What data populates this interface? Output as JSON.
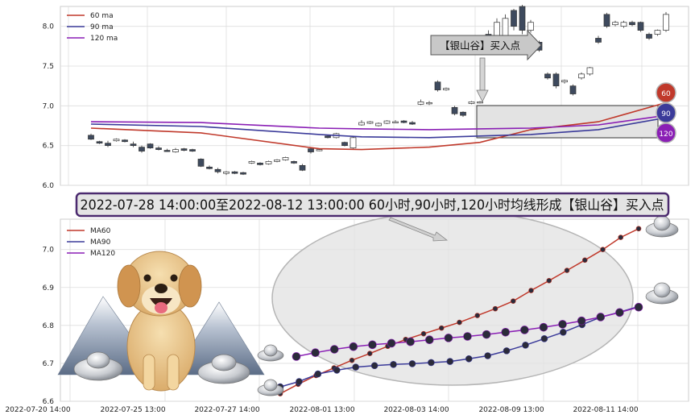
{
  "chart_data": [
    {
      "type": "candlestick",
      "ylim": [
        6.0,
        8.25
      ],
      "yticks": [
        "6.0",
        "6.5",
        "7.0",
        "7.5",
        "8.0"
      ],
      "legend": [
        "60 ma",
        "90 ma",
        "120 ma"
      ],
      "legend_placement": "top-left",
      "grid": true,
      "colors": {
        "ma60": "#c0392b",
        "ma90": "#3b3b9a",
        "ma120": "#8a1fb5",
        "bear": "#3e4a5e",
        "bull": "#ffffff"
      },
      "candles": [
        [
          6.63,
          6.58,
          6.65,
          6.57
        ],
        [
          6.55,
          6.53,
          6.56,
          6.52
        ],
        [
          6.53,
          6.5,
          6.56,
          6.48
        ],
        [
          6.56,
          6.58,
          6.59,
          6.55
        ],
        [
          6.57,
          6.55,
          6.58,
          6.54
        ],
        [
          6.52,
          6.5,
          6.55,
          6.48
        ],
        [
          6.48,
          6.43,
          6.5,
          6.41
        ],
        [
          6.52,
          6.47,
          6.53,
          6.46
        ],
        [
          6.47,
          6.45,
          6.49,
          6.44
        ],
        [
          6.44,
          6.43,
          6.46,
          6.42
        ],
        [
          6.42,
          6.45,
          6.47,
          6.41
        ],
        [
          6.46,
          6.44,
          6.47,
          6.43
        ],
        [
          6.45,
          6.43,
          6.46,
          6.42
        ],
        [
          6.33,
          6.24,
          6.34,
          6.23
        ],
        [
          6.23,
          6.21,
          6.25,
          6.2
        ],
        [
          6.2,
          6.17,
          6.22,
          6.15
        ],
        [
          6.15,
          6.17,
          6.18,
          6.13
        ],
        [
          6.17,
          6.15,
          6.18,
          6.14
        ],
        [
          6.16,
          6.14,
          6.17,
          6.13
        ],
        [
          6.28,
          6.3,
          6.31,
          6.27
        ],
        [
          6.28,
          6.26,
          6.29,
          6.25
        ],
        [
          6.27,
          6.3,
          6.31,
          6.26
        ],
        [
          6.3,
          6.32,
          6.33,
          6.29
        ],
        [
          6.32,
          6.35,
          6.36,
          6.31
        ],
        [
          6.3,
          6.28,
          6.31,
          6.27
        ],
        [
          6.25,
          6.19,
          6.27,
          6.18
        ],
        [
          6.46,
          6.42,
          6.48,
          6.4
        ],
        [
          6.44,
          6.45,
          6.46,
          6.43
        ],
        [
          6.62,
          6.6,
          6.63,
          6.59
        ],
        [
          6.6,
          6.65,
          6.66,
          6.59
        ],
        [
          6.54,
          6.5,
          6.55,
          6.49
        ],
        [
          6.47,
          6.6,
          6.62,
          6.46
        ],
        [
          6.76,
          6.79,
          6.82,
          6.75
        ],
        [
          6.78,
          6.8,
          6.81,
          6.77
        ],
        [
          6.75,
          6.78,
          6.79,
          6.74
        ],
        [
          6.78,
          6.81,
          6.82,
          6.77
        ],
        [
          6.79,
          6.8,
          6.82,
          6.78
        ],
        [
          6.81,
          6.79,
          6.82,
          6.78
        ],
        [
          6.79,
          6.77,
          6.81,
          6.76
        ],
        [
          7.02,
          7.05,
          7.08,
          7.01
        ],
        [
          7.03,
          7.04,
          7.06,
          7.01
        ],
        [
          7.3,
          7.2,
          7.32,
          7.18
        ],
        [
          7.2,
          7.22,
          7.23,
          7.19
        ],
        [
          6.98,
          6.9,
          7.0,
          6.88
        ],
        [
          6.92,
          6.88,
          6.93,
          6.86
        ],
        [
          7.03,
          7.05,
          7.06,
          7.02
        ],
        [
          7.04,
          7.05,
          7.06,
          7.03
        ],
        [
          7.9,
          7.7,
          7.95,
          7.68
        ],
        [
          7.85,
          8.05,
          8.1,
          7.83
        ],
        [
          7.82,
          8.1,
          8.15,
          7.8
        ],
        [
          8.2,
          8.0,
          8.22,
          7.95
        ],
        [
          8.25,
          7.95,
          8.27,
          7.9
        ],
        [
          7.95,
          8.05,
          8.08,
          7.92
        ],
        [
          7.8,
          7.7,
          7.82,
          7.68
        ],
        [
          7.4,
          7.35,
          7.42,
          7.33
        ],
        [
          7.4,
          7.25,
          7.42,
          7.22
        ],
        [
          7.3,
          7.32,
          7.33,
          7.28
        ],
        [
          7.25,
          7.15,
          7.27,
          7.13
        ],
        [
          7.35,
          7.4,
          7.42,
          7.33
        ],
        [
          7.4,
          7.48,
          7.49,
          7.38
        ],
        [
          7.85,
          7.8,
          7.88,
          7.78
        ],
        [
          8.15,
          8.0,
          8.17,
          7.98
        ],
        [
          8.02,
          8.05,
          8.07,
          8.0
        ],
        [
          8.0,
          8.05,
          8.07,
          7.98
        ],
        [
          8.05,
          8.02,
          8.07,
          8.0
        ],
        [
          8.05,
          7.95,
          8.06,
          7.93
        ],
        [
          7.9,
          7.85,
          7.92,
          7.83
        ],
        [
          7.9,
          7.95,
          7.96,
          7.88
        ],
        [
          7.95,
          8.15,
          8.18,
          7.93
        ]
      ],
      "ma60": [
        [
          0,
          6.72
        ],
        [
          13,
          6.66
        ],
        [
          27,
          6.46
        ],
        [
          32,
          6.45
        ],
        [
          40,
          6.48
        ],
        [
          46,
          6.54
        ],
        [
          52,
          6.7
        ],
        [
          60,
          6.8
        ],
        [
          68,
          7.04
        ]
      ],
      "ma90": [
        [
          0,
          6.77
        ],
        [
          13,
          6.74
        ],
        [
          27,
          6.64
        ],
        [
          32,
          6.61
        ],
        [
          40,
          6.6
        ],
        [
          46,
          6.62
        ],
        [
          52,
          6.64
        ],
        [
          60,
          6.7
        ],
        [
          68,
          6.85
        ]
      ],
      "ma120": [
        [
          0,
          6.8
        ],
        [
          13,
          6.79
        ],
        [
          27,
          6.72
        ],
        [
          32,
          6.71
        ],
        [
          40,
          6.7
        ],
        [
          46,
          6.71
        ],
        [
          52,
          6.72
        ],
        [
          60,
          6.76
        ],
        [
          68,
          6.88
        ]
      ],
      "callout": "【银山谷】买入点",
      "badges": [
        "60",
        "90",
        "120"
      ]
    },
    {
      "type": "line",
      "ylim": [
        6.6,
        7.08
      ],
      "yticks": [
        "6.6",
        "6.7",
        "6.8",
        "6.9",
        "7.0"
      ],
      "legend": [
        "MA60",
        "MA90",
        "MA120"
      ],
      "legend_placement": "top-left",
      "grid": true,
      "x_dates": [
        "2022-07-20 14:00",
        "2022-07-25 13:00",
        "2022-07-27 14:00",
        "2022-08-01 13:00",
        "2022-08-03 14:00",
        "2022-08-09 13:00",
        "2022-08-11 14:00"
      ],
      "colors": {
        "ma60": "#c0392b",
        "ma90": "#3b3b9a",
        "ma120": "#8a1fb5"
      },
      "ma60": [
        6.62,
        6.645,
        6.668,
        6.688,
        6.708,
        6.726,
        6.745,
        6.763,
        6.778,
        6.793,
        6.808,
        6.826,
        6.844,
        6.864,
        6.892,
        6.918,
        6.945,
        6.972,
        7.0,
        7.032,
        7.055
      ],
      "ma90": [
        6.638,
        6.652,
        6.672,
        6.682,
        6.69,
        6.694,
        6.697,
        6.699,
        6.702,
        6.705,
        6.712,
        6.72,
        6.733,
        6.748,
        6.765,
        6.782,
        6.802,
        6.822,
        6.835,
        6.85
      ],
      "ma120": [
        6.718,
        6.728,
        6.737,
        6.744,
        6.749,
        6.753,
        6.757,
        6.762,
        6.767,
        6.771,
        6.776,
        6.782,
        6.788,
        6.795,
        6.803,
        6.812,
        6.822,
        6.834,
        6.848
      ]
    }
  ],
  "banner": "2022-07-28 14:00:00至2022-08-12 13:00:00 60小时,90小时,120小时均线形成【银山谷】买入点"
}
